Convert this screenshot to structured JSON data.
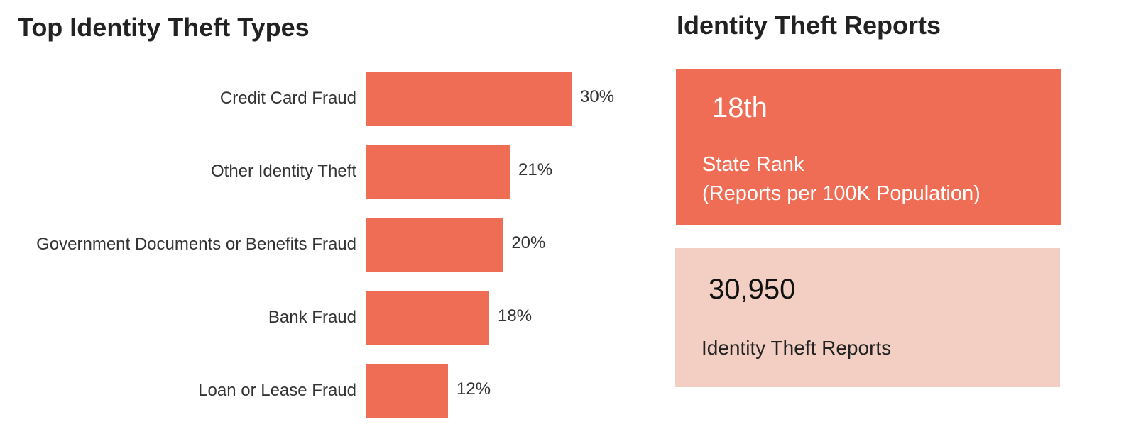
{
  "chart_data": {
    "type": "bar",
    "orientation": "horizontal",
    "title": "Top Identity Theft Types",
    "categories": [
      "Credit Card Fraud",
      "Other Identity Theft",
      "Government Documents or Benefits Fraud",
      "Bank Fraud",
      "Loan or Lease Fraud"
    ],
    "values": [
      30,
      21,
      20,
      18,
      12
    ],
    "value_labels": [
      "30%",
      "21%",
      "20%",
      "18%",
      "12%"
    ],
    "color": "#ef6c55"
  },
  "reports_panel": {
    "title": "Identity Theft Reports",
    "cards": [
      {
        "value": "18th",
        "label": [
          "State Rank",
          "(Reports per 100K Population)"
        ],
        "color": "#ef6c55"
      },
      {
        "value": "30,950",
        "label": [
          "Identity Theft Reports"
        ],
        "color": "#f2cfc2"
      }
    ]
  }
}
